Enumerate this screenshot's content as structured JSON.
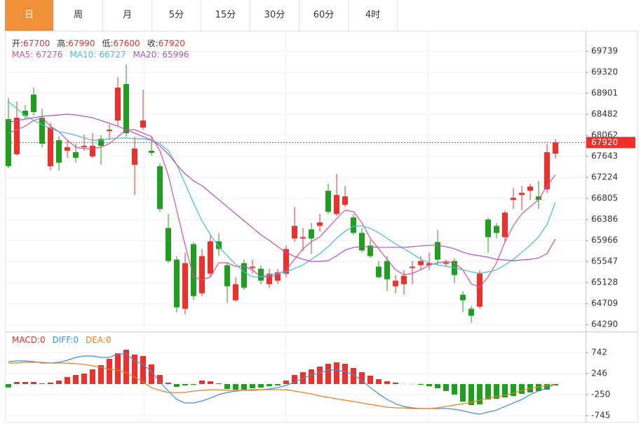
{
  "tabs": [
    "日",
    "周",
    "月",
    "5分",
    "15分",
    "30分",
    "60分",
    "4时"
  ],
  "active_tab": 0,
  "chart_data": [
    {
      "type": "candlestick",
      "header": [
        {
          "label": "开:",
          "value": 67700
        },
        {
          "label": "高:",
          "value": 67990
        },
        {
          "label": "低:",
          "value": 67600
        },
        {
          "label": "收:",
          "value": 67920
        }
      ],
      "up_color": "#ee2f2a",
      "down_color": "#1e9f1e",
      "open": [
        68386,
        67686,
        68554,
        68875,
        68414,
        67448,
        67966,
        67756,
        67728,
        67826,
        67644,
        67992,
        68148,
        68358,
        69085,
        67476,
        68218,
        67756,
        67448,
        66216,
        65586,
        64606,
        65894,
        64914,
        65306,
        65950,
        65474,
        64774,
        65516,
        65418,
        65404,
        65096,
        65166,
        65306,
        66006,
        66006,
        66188,
        66258,
        66958,
        66496,
        66678,
        66426,
        66118,
        65866,
        65446,
        65558,
        65054,
        65096,
        65418,
        65474,
        65474,
        65936,
        65502,
        65558,
        64886,
        64606,
        64648,
        66384,
        66258,
        66034,
        66776,
        66874,
        66958,
        66846,
        66986,
        67700
      ],
      "high": [
        68805,
        68735,
        68666,
        69015,
        68596,
        68316,
        68036,
        67966,
        67896,
        68078,
        68106,
        68064,
        68274,
        69224,
        69476,
        68036,
        68973,
        68036,
        67504,
        66496,
        65656,
        65726,
        65936,
        65796,
        66076,
        66118,
        65516,
        65236,
        65586,
        65586,
        65474,
        65404,
        65404,
        65866,
        66636,
        66216,
        66314,
        66496,
        67098,
        67294,
        67056,
        66496,
        66216,
        65978,
        65558,
        65656,
        65278,
        65376,
        65558,
        65656,
        65726,
        66174,
        65586,
        65614,
        64956,
        64662,
        65376,
        66426,
        66314,
        66566,
        67014,
        67056,
        67098,
        67154,
        67896,
        67990
      ],
      "low": [
        67406,
        67658,
        68386,
        68456,
        67826,
        67364,
        67364,
        67616,
        67518,
        67756,
        67616,
        67476,
        67966,
        68246,
        68036,
        66874,
        68176,
        67658,
        66538,
        65516,
        64536,
        64494,
        64774,
        64858,
        65236,
        65656,
        64718,
        64746,
        64984,
        65306,
        65096,
        65026,
        65096,
        65236,
        65936,
        65754,
        65698,
        66146,
        66496,
        66454,
        66636,
        66076,
        65726,
        65614,
        65208,
        64956,
        64914,
        64886,
        65096,
        65376,
        65376,
        65474,
        65446,
        65110,
        64536,
        64326,
        64606,
        65726,
        66006,
        65936,
        66594,
        66566,
        66776,
        66594,
        66916,
        67600
      ],
      "close": [
        67448,
        68414,
        68456,
        68526,
        67896,
        68218,
        67518,
        67826,
        67616,
        67854,
        67854,
        67854,
        68176,
        69015,
        68106,
        67798,
        68358,
        67714,
        66594,
        65558,
        64634,
        65516,
        64858,
        65656,
        65950,
        65796,
        65054,
        65096,
        65026,
        65446,
        65166,
        65306,
        65334,
        65796,
        66258,
        66034,
        66006,
        66328,
        66538,
        66874,
        66846,
        66118,
        65768,
        65656,
        65236,
        65194,
        65166,
        65264,
        65446,
        65558,
        65516,
        65586,
        65530,
        65278,
        64774,
        64466,
        65306,
        66034,
        66118,
        66524,
        66818,
        66916,
        67042,
        66776,
        67728,
        67920
      ],
      "series": [
        {
          "name": "MA5:",
          "color": "#df4f96",
          "last": 67276,
          "values": [
            68107,
            68176,
            68246,
            68358,
            68414,
            68246,
            68135,
            67967,
            67827,
            67799,
            67799,
            67827,
            67897,
            68037,
            68176,
            68176,
            68107,
            68037,
            67757,
            67268,
            66570,
            65872,
            65243,
            65173,
            65243,
            65522,
            65522,
            65452,
            65452,
            65382,
            65243,
            65243,
            65285,
            65382,
            65592,
            65802,
            65941,
            66039,
            66221,
            66402,
            66570,
            66542,
            66319,
            66011,
            65802,
            65592,
            65382,
            65285,
            65313,
            65382,
            65480,
            65522,
            65550,
            65522,
            65382,
            65103,
            65033,
            65243,
            65522,
            65941,
            66263,
            66500,
            66640,
            66780,
            67059,
            67276
          ]
        },
        {
          "name": "MA10:",
          "color": "#3fbfd6",
          "last": 66727,
          "values": [
            68735,
            68596,
            68456,
            68358,
            68274,
            68204,
            68135,
            68107,
            68065,
            68009,
            67967,
            67967,
            67995,
            68009,
            68009,
            67995,
            67995,
            67967,
            67897,
            67757,
            67478,
            67101,
            66710,
            66360,
            66081,
            65844,
            65662,
            65494,
            65341,
            65243,
            65243,
            65285,
            65313,
            65341,
            65410,
            65480,
            65592,
            65704,
            65844,
            66011,
            66151,
            66249,
            66263,
            66207,
            66123,
            66011,
            65899,
            65802,
            65704,
            65592,
            65522,
            65480,
            65452,
            65424,
            65382,
            65341,
            65313,
            65341,
            65382,
            65480,
            65592,
            65732,
            65872,
            66039,
            66291,
            66727
          ]
        },
        {
          "name": "MA20:",
          "color": "#b052c2",
          "last": 65996,
          "values": [
            68316,
            68358,
            68386,
            68414,
            68442,
            68456,
            68470,
            68484,
            68470,
            68442,
            68414,
            68358,
            68302,
            68246,
            68176,
            68107,
            68037,
            67967,
            67855,
            67688,
            67478,
            67296,
            67157,
            67059,
            66919,
            66780,
            66640,
            66500,
            66360,
            66221,
            66081,
            65969,
            65844,
            65732,
            65648,
            65592,
            65550,
            65550,
            65564,
            65662,
            65774,
            65830,
            65844,
            65844,
            65830,
            65830,
            65830,
            65830,
            65844,
            65858,
            65872,
            65872,
            65844,
            65802,
            65732,
            65690,
            65662,
            65634,
            65592,
            65578,
            65564,
            65578,
            65592,
            65620,
            65704,
            65996
          ]
        }
      ],
      "ylim": [
        64195,
        70090
      ],
      "yticks": [
        69739,
        69320,
        68901,
        68482,
        68062,
        67643,
        67224,
        66805,
        66386,
        65966,
        65547,
        65128,
        64709,
        64290
      ],
      "grid": true
    },
    {
      "type": "macd",
      "up_color": "#ee2f2a",
      "down_color": "#1e9f1e",
      "series": [
        {
          "name": "MACD:",
          "color": "#ee2f2a",
          "last": 0,
          "values": [
            -80,
            50,
            50,
            50,
            17,
            33,
            83,
            165,
            215,
            248,
            347,
            446,
            595,
            727,
            810,
            694,
            661,
            463,
            215,
            33,
            -66,
            -33,
            -17,
            83,
            66,
            17,
            -116,
            -132,
            -132,
            -99,
            -83,
            -50,
            -33,
            83,
            215,
            281,
            347,
            413,
            479,
            512,
            479,
            380,
            281,
            198,
            116,
            66,
            33,
            0,
            0,
            -17,
            -50,
            -99,
            -165,
            -248,
            -413,
            -496,
            -479,
            -364,
            -347,
            -314,
            -281,
            -231,
            -198,
            -165,
            -132,
            -33
          ]
        },
        {
          "name": "DIFF:",
          "color": "#3a8fe0",
          "last": 0,
          "values": [
            529,
            545,
            545,
            529,
            496,
            496,
            512,
            562,
            628,
            661,
            661,
            628,
            628,
            711,
            711,
            545,
            463,
            298,
            50,
            -165,
            -364,
            -446,
            -446,
            -397,
            -331,
            -248,
            -198,
            -165,
            -149,
            -132,
            -132,
            -116,
            -83,
            -33,
            50,
            132,
            215,
            264,
            331,
            331,
            298,
            215,
            83,
            -83,
            -231,
            -364,
            -463,
            -529,
            -562,
            -579,
            -579,
            -579,
            -579,
            -595,
            -628,
            -678,
            -711,
            -661,
            -612,
            -529,
            -446,
            -364,
            -248,
            -165,
            -83,
            0
          ]
        },
        {
          "name": "DEA:",
          "color": "#f07d1e",
          "last": 0,
          "values": [
            496,
            496,
            512,
            512,
            512,
            496,
            496,
            496,
            479,
            463,
            430,
            397,
            347,
            331,
            264,
            165,
            50,
            -83,
            -149,
            -198,
            -198,
            -198,
            -165,
            -149,
            -132,
            -132,
            -149,
            -149,
            -149,
            -149,
            -132,
            -132,
            -132,
            -132,
            -165,
            -198,
            -231,
            -281,
            -314,
            -347,
            -380,
            -413,
            -446,
            -479,
            -512,
            -545,
            -562,
            -562,
            -579,
            -579,
            -579,
            -562,
            -529,
            -496,
            -463,
            -430,
            -380,
            -331,
            -298,
            -264,
            -215,
            -149,
            -99,
            -66,
            -33,
            0
          ]
        }
      ],
      "ylim": [
        -909,
        1157
      ],
      "yticks": [
        742,
        246,
        -250,
        -745
      ],
      "grid": true
    }
  ]
}
